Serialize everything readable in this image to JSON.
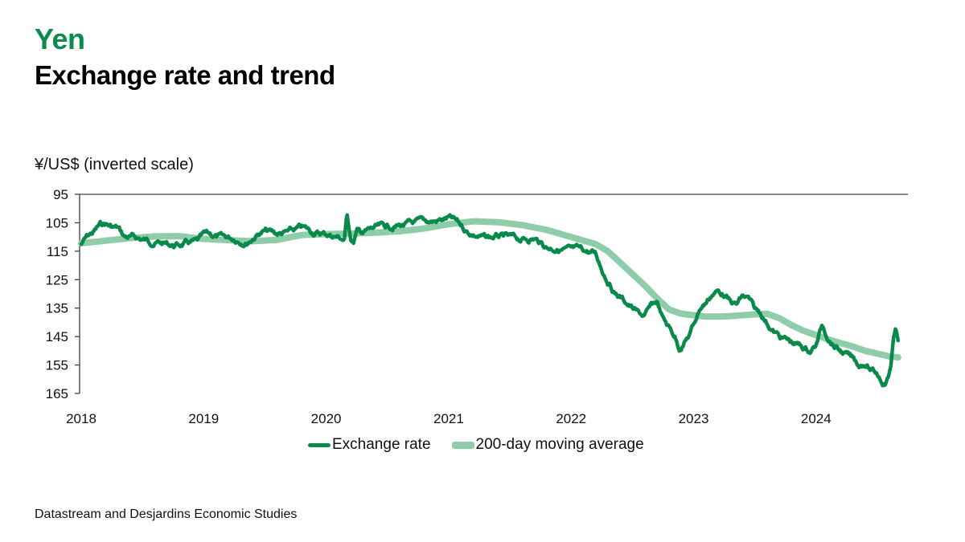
{
  "header": {
    "title": "Yen",
    "subtitle": "Exchange rate and trend"
  },
  "footer": {
    "source": "Datastream and Desjardins Economic Studies"
  },
  "colors": {
    "accent": "#0a8c4c",
    "exchange_rate": "#0a8a4a",
    "moving_average": "#8fcca8"
  },
  "chart_data": {
    "type": "line",
    "title": "Exchange rate and trend",
    "ylabel": "¥/US$ (inverted scale)",
    "xlabel": "",
    "y_inverted": true,
    "ylim": [
      95,
      165
    ],
    "yticks": [
      95,
      105,
      115,
      125,
      135,
      145,
      155,
      165
    ],
    "xlim": [
      2018,
      2024.67
    ],
    "xticks": [
      "2018",
      "2019",
      "2020",
      "2021",
      "2022",
      "2023",
      "2024"
    ],
    "grid": false,
    "legend": "bottom",
    "series": [
      {
        "name": "Exchange rate",
        "x": [
          2018.0,
          2018.05,
          2018.1,
          2018.15,
          2018.2,
          2018.25,
          2018.3,
          2018.35,
          2018.45,
          2018.55,
          2018.65,
          2018.75,
          2018.85,
          2018.95,
          2019.0,
          2019.05,
          2019.15,
          2019.25,
          2019.35,
          2019.45,
          2019.5,
          2019.6,
          2019.7,
          2019.8,
          2019.9,
          2020.0,
          2020.1,
          2020.15,
          2020.17,
          2020.2,
          2020.22,
          2020.25,
          2020.3,
          2020.4,
          2020.5,
          2020.6,
          2020.7,
          2020.8,
          2020.9,
          2021.0,
          2021.05,
          2021.1,
          2021.15,
          2021.2,
          2021.3,
          2021.4,
          2021.5,
          2021.6,
          2021.7,
          2021.8,
          2021.9,
          2022.0,
          2022.1,
          2022.15,
          2022.2,
          2022.25,
          2022.3,
          2022.35,
          2022.4,
          2022.45,
          2022.5,
          2022.55,
          2022.6,
          2022.65,
          2022.7,
          2022.75,
          2022.8,
          2022.85,
          2022.88,
          2022.92,
          2022.97,
          2023.0,
          2023.05,
          2023.1,
          2023.15,
          2023.2,
          2023.25,
          2023.3,
          2023.35,
          2023.4,
          2023.45,
          2023.5,
          2023.55,
          2023.6,
          2023.65,
          2023.7,
          2023.8,
          2023.9,
          2023.95,
          2024.0,
          2024.05,
          2024.1,
          2024.15,
          2024.2,
          2024.3,
          2024.35,
          2024.4,
          2024.45,
          2024.5,
          2024.53,
          2024.56,
          2024.59,
          2024.61,
          2024.63,
          2024.65,
          2024.67
        ],
        "values": [
          112.5,
          110,
          108.5,
          106,
          105.5,
          106.5,
          107,
          110,
          110.5,
          111.5,
          112,
          113,
          112.5,
          112,
          110,
          109.5,
          110.5,
          110.5,
          111.5,
          108.5,
          108,
          109,
          108.5,
          107,
          108.5,
          109,
          110,
          111,
          102,
          110,
          112,
          108,
          108.5,
          107,
          106.5,
          106,
          105.5,
          105,
          104.5,
          103.5,
          104.5,
          106,
          108,
          109,
          110.5,
          110,
          110.5,
          111,
          110.5,
          113.5,
          114,
          115,
          115,
          115.5,
          116,
          121,
          125,
          129,
          131,
          133,
          135,
          137,
          138,
          135,
          133,
          139,
          142,
          145,
          149,
          147,
          144,
          141,
          135,
          133,
          130,
          129,
          130,
          133,
          134,
          131,
          132,
          136,
          137,
          140,
          143,
          145,
          147,
          149,
          150,
          148,
          141,
          145,
          148,
          150,
          153,
          155,
          154,
          157,
          158,
          160,
          161,
          159,
          155,
          146,
          143,
          146
        ]
      },
      {
        "name": "200-day moving average",
        "x": [
          2018.0,
          2018.2,
          2018.4,
          2018.6,
          2018.8,
          2019.0,
          2019.2,
          2019.4,
          2019.6,
          2019.8,
          2020.0,
          2020.2,
          2020.4,
          2020.6,
          2020.8,
          2021.0,
          2021.2,
          2021.4,
          2021.6,
          2021.8,
          2022.0,
          2022.2,
          2022.3,
          2022.4,
          2022.5,
          2022.6,
          2022.7,
          2022.8,
          2022.9,
          2023.0,
          2023.1,
          2023.2,
          2023.3,
          2023.4,
          2023.5,
          2023.6,
          2023.7,
          2023.8,
          2023.9,
          2024.0,
          2024.1,
          2024.2,
          2024.3,
          2024.4,
          2024.5,
          2024.6,
          2024.67
        ],
        "values": [
          112.2,
          111.3,
          110.4,
          109.8,
          109.7,
          110.7,
          111.1,
          111.5,
          111.0,
          109.3,
          109.0,
          108.8,
          108.5,
          108.0,
          107.0,
          105.5,
          104.5,
          104.8,
          105.8,
          107.5,
          110.0,
          112.5,
          115.0,
          119.0,
          123.0,
          127.0,
          131.5,
          135.5,
          137.0,
          137.5,
          138.0,
          138.0,
          137.8,
          137.5,
          137.2,
          137.0,
          138.5,
          141.0,
          143.0,
          144.5,
          146.0,
          147.3,
          148.5,
          150.0,
          151.0,
          152.0,
          152.3
        ]
      }
    ]
  }
}
